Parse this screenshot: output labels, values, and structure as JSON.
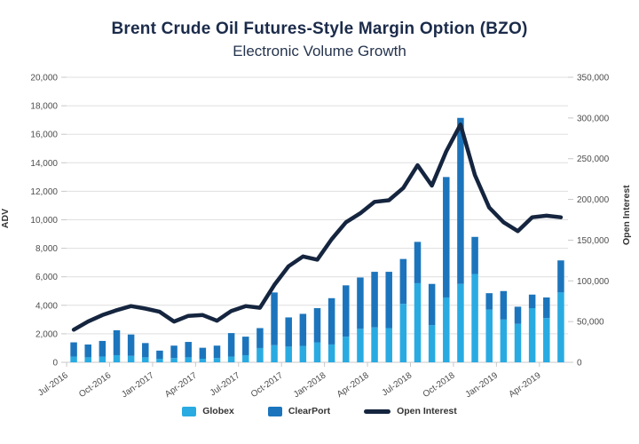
{
  "chart_data": {
    "type": "combo-stacked-bar-line",
    "title": "Brent Crude Oil Futures-Style Margin Option (BZO)",
    "subtitle": "Electronic Volume Growth",
    "categories": [
      "Jul-2016",
      "Aug-2016",
      "Sep-2016",
      "Oct-2016",
      "Nov-2016",
      "Dec-2016",
      "Jan-2017",
      "Feb-2017",
      "Mar-2017",
      "Apr-2017",
      "May-2017",
      "Jun-2017",
      "Jul-2017",
      "Aug-2017",
      "Sep-2017",
      "Oct-2017",
      "Nov-2017",
      "Dec-2017",
      "Jan-2018",
      "Feb-2018",
      "Mar-2018",
      "Apr-2018",
      "May-2018",
      "Jun-2018",
      "Jul-2018",
      "Aug-2018",
      "Sep-2018",
      "Oct-2018",
      "Nov-2018",
      "Dec-2018",
      "Jan-2019",
      "Feb-2019",
      "Mar-2019",
      "Apr-2019",
      "May-2019"
    ],
    "tick_every": 3,
    "series": [
      {
        "name": "Globex",
        "type": "bar",
        "axis": "left",
        "color": "#29abe2",
        "values": [
          400,
          350,
          400,
          500,
          450,
          350,
          250,
          300,
          350,
          250,
          300,
          400,
          500,
          1000,
          1200,
          1100,
          1150,
          1400,
          1250,
          1800,
          2350,
          2450,
          2400,
          4100,
          5550,
          2600,
          4550,
          5500,
          6200,
          3700,
          3000,
          2700,
          3800,
          3100,
          4900
        ]
      },
      {
        "name": "ClearPort",
        "type": "bar",
        "axis": "left",
        "color": "#1c75bc",
        "values": [
          1000,
          900,
          1100,
          1750,
          1500,
          1000,
          570,
          870,
          1080,
          770,
          870,
          1650,
          1300,
          1400,
          3700,
          2050,
          2250,
          2400,
          3250,
          3600,
          3600,
          3900,
          3950,
          3150,
          2900,
          2900,
          8450,
          11650,
          2600,
          1150,
          2000,
          1200,
          950,
          1450,
          2250
        ]
      },
      {
        "name": "Open Interest",
        "type": "line",
        "axis": "right",
        "color": "#15253f",
        "values": [
          40000,
          50000,
          58000,
          64000,
          69000,
          66000,
          62000,
          50000,
          57000,
          58000,
          51000,
          63000,
          69000,
          67000,
          95000,
          118000,
          130000,
          126000,
          151000,
          172000,
          183000,
          197000,
          199000,
          214000,
          242000,
          217000,
          259000,
          292000,
          230000,
          190000,
          172000,
          161000,
          178000,
          180000,
          178000
        ]
      }
    ],
    "left_axis": {
      "label": "ADV",
      "min": 0,
      "max": 20000,
      "step": 2000
    },
    "right_axis": {
      "label": "Open Interest",
      "min": 0,
      "max": 350000,
      "step": 50000
    },
    "legend": {
      "items": [
        "Globex",
        "ClearPort",
        "Open Interest"
      ],
      "position": "bottom"
    },
    "grid": "horizontal",
    "colors": {
      "grid": "#dfdfdf",
      "axis_line": "#c8c8c8",
      "tick_text": "#4d4d4d"
    }
  }
}
